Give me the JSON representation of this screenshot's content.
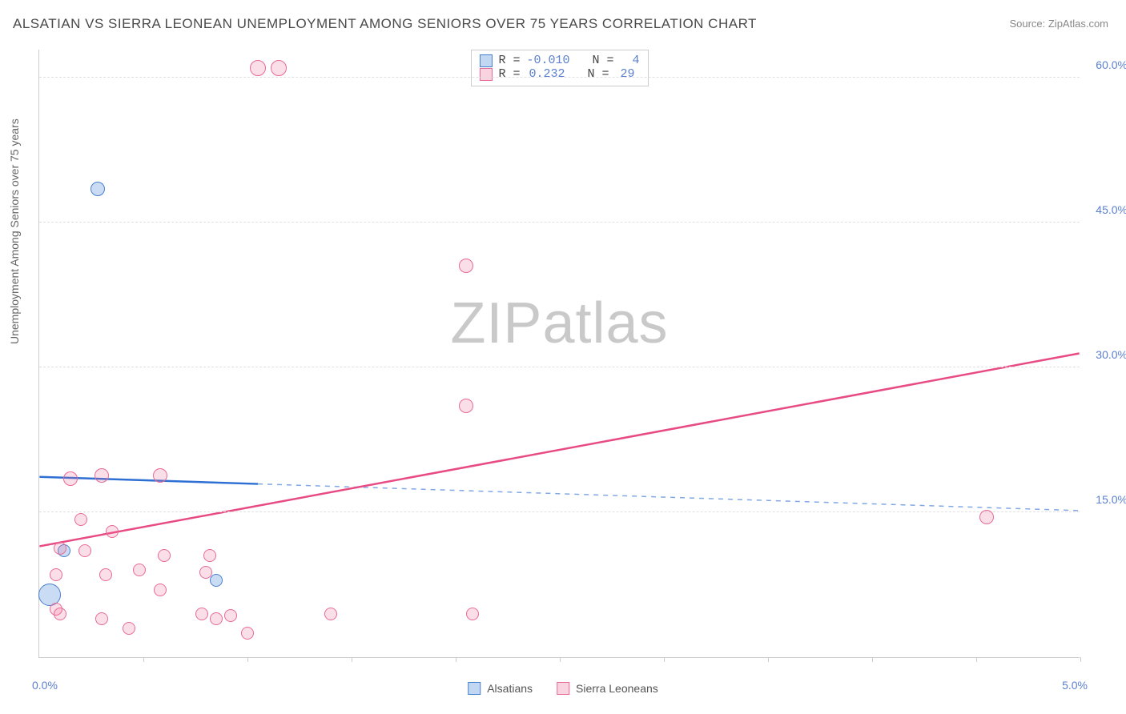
{
  "title": "ALSATIAN VS SIERRA LEONEAN UNEMPLOYMENT AMONG SENIORS OVER 75 YEARS CORRELATION CHART",
  "source": "Source: ZipAtlas.com",
  "y_axis_title": "Unemployment Among Seniors over 75 years",
  "watermark_zip": "ZIP",
  "watermark_atlas": "atlas",
  "chart": {
    "type": "scatter",
    "xlim": [
      0,
      5.0
    ],
    "ylim": [
      0,
      63
    ],
    "x_origin_label": "0.0%",
    "x_max_label": "5.0%",
    "x_ticks": [
      0.5,
      1.0,
      1.5,
      2.0,
      2.5,
      3.0,
      3.5,
      4.0,
      4.5,
      5.0
    ],
    "y_gridlines": [
      15.0,
      30.0,
      45.0,
      60.0
    ],
    "y_tick_labels": [
      "15.0%",
      "30.0%",
      "45.0%",
      "60.0%"
    ],
    "background_color": "#ffffff",
    "grid_color": "#e0e0e0",
    "colors": {
      "blue_fill": "rgba(103,155,222,0.35)",
      "blue_stroke": "#4a7fd0",
      "pink_fill": "rgba(235,110,150,0.22)",
      "pink_stroke": "#e96a95",
      "axis_label": "#5b7fd1"
    },
    "series": [
      {
        "key": "alsatians",
        "name": "Alsatians",
        "color": "blue",
        "R": "-0.010",
        "N": "4",
        "points": [
          {
            "x": 0.28,
            "y": 48.5,
            "r": 9
          },
          {
            "x": 0.05,
            "y": 6.5,
            "r": 14
          },
          {
            "x": 0.85,
            "y": 8.0,
            "r": 8
          },
          {
            "x": 0.12,
            "y": 11.0,
            "r": 8
          }
        ],
        "trend": {
          "y_at_x0": 18.7,
          "y_at_xmax": 15.2,
          "solid_until_x": 1.05
        }
      },
      {
        "key": "sierra_leoneans",
        "name": "Sierra Leoneans",
        "color": "pink",
        "R": "0.232",
        "N": "29",
        "points": [
          {
            "x": 1.05,
            "y": 61.0,
            "r": 10
          },
          {
            "x": 1.15,
            "y": 61.0,
            "r": 10
          },
          {
            "x": 2.05,
            "y": 40.5,
            "r": 9
          },
          {
            "x": 2.05,
            "y": 26.0,
            "r": 9
          },
          {
            "x": 4.55,
            "y": 14.5,
            "r": 9
          },
          {
            "x": 0.15,
            "y": 18.5,
            "r": 9
          },
          {
            "x": 0.3,
            "y": 18.8,
            "r": 9
          },
          {
            "x": 0.58,
            "y": 18.8,
            "r": 9
          },
          {
            "x": 0.2,
            "y": 14.3,
            "r": 8
          },
          {
            "x": 0.35,
            "y": 13.0,
            "r": 8
          },
          {
            "x": 0.1,
            "y": 11.3,
            "r": 8
          },
          {
            "x": 0.22,
            "y": 11.0,
            "r": 8
          },
          {
            "x": 0.48,
            "y": 9.0,
            "r": 8
          },
          {
            "x": 0.6,
            "y": 10.5,
            "r": 8
          },
          {
            "x": 0.82,
            "y": 10.5,
            "r": 8
          },
          {
            "x": 0.8,
            "y": 8.8,
            "r": 8
          },
          {
            "x": 0.08,
            "y": 8.5,
            "r": 8
          },
          {
            "x": 0.32,
            "y": 8.5,
            "r": 8
          },
          {
            "x": 0.58,
            "y": 7.0,
            "r": 8
          },
          {
            "x": 0.08,
            "y": 5.0,
            "r": 8
          },
          {
            "x": 0.1,
            "y": 4.5,
            "r": 8
          },
          {
            "x": 0.3,
            "y": 4.0,
            "r": 8
          },
          {
            "x": 0.43,
            "y": 3.0,
            "r": 8
          },
          {
            "x": 0.78,
            "y": 4.5,
            "r": 8
          },
          {
            "x": 0.85,
            "y": 4.0,
            "r": 8
          },
          {
            "x": 0.92,
            "y": 4.3,
            "r": 8
          },
          {
            "x": 1.0,
            "y": 2.5,
            "r": 8
          },
          {
            "x": 1.4,
            "y": 4.5,
            "r": 8
          },
          {
            "x": 2.08,
            "y": 4.5,
            "r": 8
          }
        ],
        "trend": {
          "y_at_x0": 11.5,
          "y_at_xmax": 31.5,
          "solid_until_x": 5.0
        }
      }
    ],
    "legend_top": {
      "R_label": "R =",
      "N_label": "N ="
    },
    "legend_bottom": {
      "label_alsatians": "Alsatians",
      "label_sierra": "Sierra Leoneans"
    }
  }
}
